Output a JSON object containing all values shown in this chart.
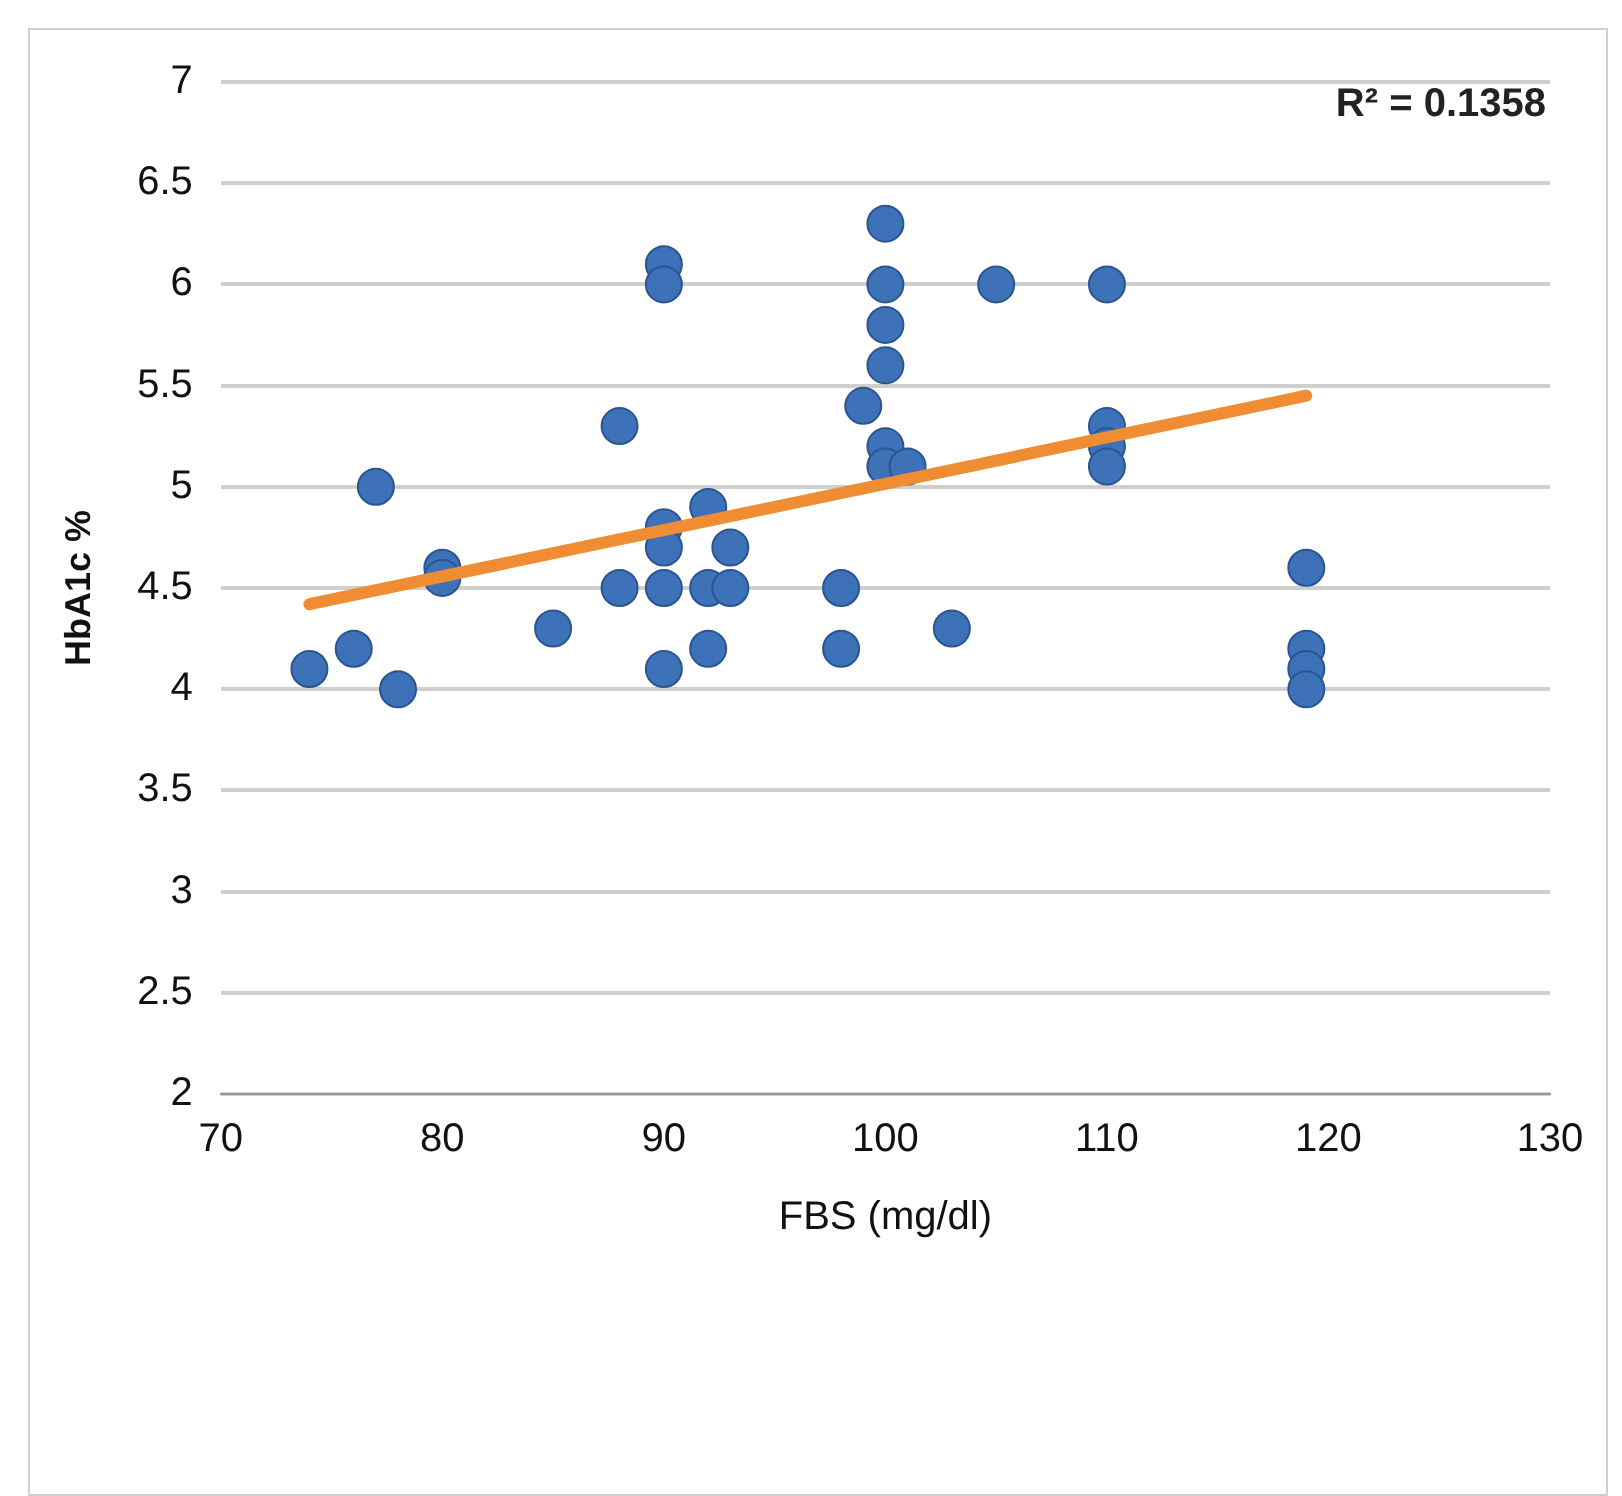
{
  "chart_data": {
    "type": "scatter",
    "xlabel": "FBS (mg/dl)",
    "ylabel": "HbA1c %",
    "xlim": [
      70,
      130
    ],
    "xticks": [
      70,
      80,
      90,
      100,
      110,
      120,
      130
    ],
    "ylim": [
      2,
      7
    ],
    "yticks": [
      2,
      2.5,
      3,
      3.5,
      4,
      4.5,
      5,
      5.5,
      6,
      6.5,
      7
    ],
    "grid": "y",
    "legend": false,
    "marker": "circle",
    "annotations": [
      "R² = 0.1358"
    ],
    "series": [
      {
        "color": "#3d72b8",
        "x": [
          74,
          76,
          77,
          78,
          80,
          80,
          85,
          88,
          88,
          90,
          90,
          90,
          90,
          90,
          90,
          92,
          92,
          92,
          93,
          93,
          98,
          98,
          99,
          100,
          100,
          100,
          100,
          100,
          100,
          101,
          103,
          105,
          110,
          110,
          110,
          110,
          119,
          119,
          119,
          119
        ],
        "values": [
          4.1,
          4.2,
          5.0,
          4.0,
          4.6,
          4.55,
          4.3,
          5.3,
          4.5,
          6.1,
          6.0,
          4.8,
          4.7,
          4.5,
          4.1,
          4.9,
          4.5,
          4.2,
          4.7,
          4.5,
          4.5,
          4.2,
          5.4,
          6.3,
          6.0,
          5.8,
          5.6,
          5.2,
          5.1,
          5.1,
          4.3,
          6.0,
          6.0,
          5.3,
          5.2,
          5.1,
          4.6,
          4.2,
          4.1,
          4.0
        ]
      },
      {
        "type": "line",
        "color": "#f08c32",
        "x": [
          74,
          119
        ],
        "values": [
          4.42,
          5.45
        ],
        "marker": "none"
      }
    ]
  }
}
